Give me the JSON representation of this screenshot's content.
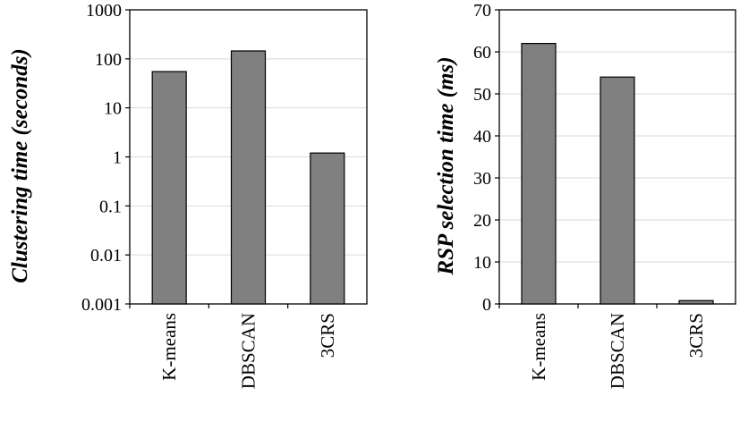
{
  "chart_data": [
    {
      "type": "bar",
      "categories": [
        "K-means",
        "DBSCAN",
        "3CRS"
      ],
      "values": [
        55,
        145,
        1.2
      ],
      "title": "",
      "xlabel": "",
      "ylabel": "Clustering time (seconds)",
      "yscale": "log",
      "ylim": [
        0.001,
        1000
      ],
      "yticks": [
        "0.001",
        "0.01",
        "0.1",
        "1",
        "10",
        "100",
        "1000"
      ],
      "grid": true,
      "bar_color": "#808080"
    },
    {
      "type": "bar",
      "categories": [
        "K-means",
        "DBSCAN",
        "3CRS"
      ],
      "values": [
        62,
        54,
        0.8
      ],
      "title": "",
      "xlabel": "",
      "ylabel": "RSP selection time (ms)",
      "yscale": "linear",
      "ylim": [
        0,
        70
      ],
      "yticks": [
        "0",
        "10",
        "20",
        "30",
        "40",
        "50",
        "60",
        "70"
      ],
      "grid": true,
      "bar_color": "#808080"
    }
  ]
}
